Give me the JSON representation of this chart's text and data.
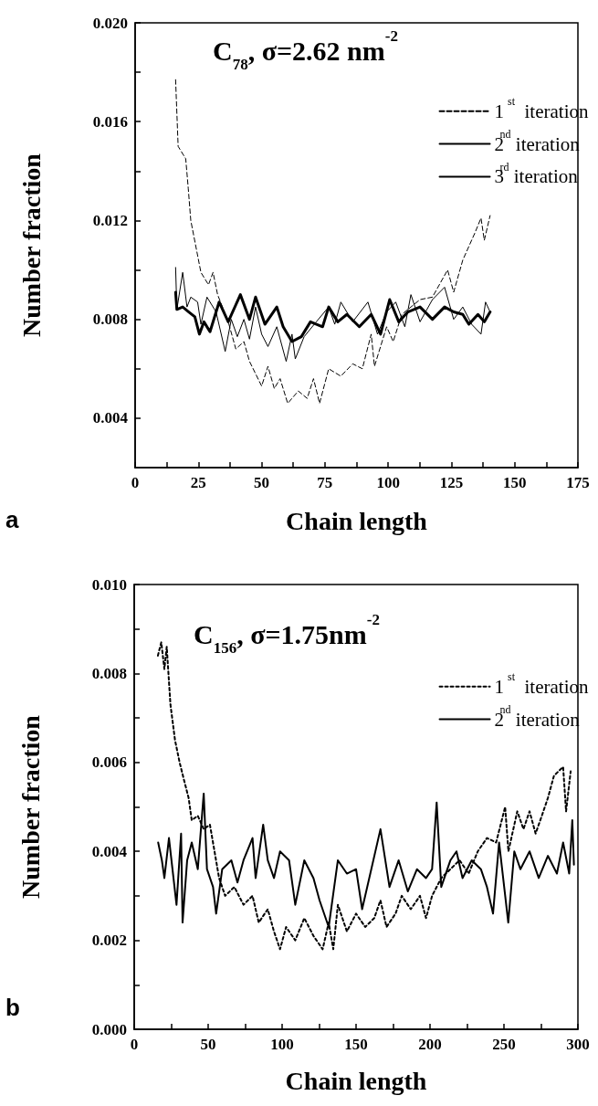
{
  "chart_data": [
    {
      "type": "line",
      "title": "C$_{78}$, σ=2.62 nm$^{-2}$",
      "xlabel": "Chain length",
      "ylabel": "Number fraction",
      "annotations": [
        "a"
      ],
      "legend": "top right",
      "marker": "none",
      "xlim": [
        0,
        175
      ],
      "xticks": [
        0,
        {
          "value": 12.5,
          "label": null
        },
        25,
        {
          "value": 37.5,
          "label": null
        },
        50,
        {
          "value": 62.5,
          "label": null
        },
        75,
        {
          "value": 87.5,
          "label": null
        },
        100,
        {
          "value": 112.5,
          "label": null
        },
        125,
        {
          "value": 137.5,
          "label": null
        },
        150,
        {
          "value": 162.5,
          "label": null
        },
        175
      ],
      "ylim": [
        0.002,
        0.02
      ],
      "yticks": [
        0.004,
        {
          "value": 0.006,
          "label": null
        },
        0.008,
        {
          "value": 0.01,
          "label": null
        },
        0.012,
        {
          "value": 0.014,
          "label": null
        },
        0.016,
        {
          "value": 0.018,
          "label": null
        },
        {
          "value": 0.02,
          "label": "0.020"
        }
      ],
      "series": [
        {
          "name": "1$^{st}$  iteration",
          "color": "#000000",
          "line_style": "dashed",
          "x": [
            16,
            17,
            20,
            21,
            22,
            26,
            29,
            30.8,
            32.6,
            36.8,
            39.8,
            43,
            45.2,
            50,
            52.5,
            55,
            57.3,
            60.3,
            64.5,
            68,
            70.5,
            72.9,
            76.5,
            81.3,
            86,
            89.8,
            93.3,
            94.6,
            99.4,
            102,
            105.4,
            112.6,
            117.5,
            123.5,
            125.9,
            129.5,
            134.3,
            136.7,
            138,
            140.3
          ],
          "values": [
            0.0177,
            0.015,
            0.0145,
            0.0133,
            0.012,
            0.0099,
            0.0094,
            0.0099,
            0.009,
            0.0079,
            0.0068,
            0.0071,
            0.0063,
            0.0053,
            0.0061,
            0.0052,
            0.0056,
            0.0046,
            0.0051,
            0.0048,
            0.0056,
            0.0046,
            0.006,
            0.0057,
            0.0062,
            0.006,
            0.0074,
            0.0061,
            0.0077,
            0.0071,
            0.0082,
            0.0088,
            0.0089,
            0.01,
            0.0091,
            0.0104,
            0.0115,
            0.0121,
            0.0112,
            0.0122
          ]
        },
        {
          "name": "2$^{nd}$ iteration",
          "color": "#000000",
          "line_style": "solid",
          "x": [
            16,
            16.5,
            18.8,
            20.5,
            22,
            24.7,
            26,
            28.4,
            32,
            35.6,
            38,
            40.4,
            43,
            45.2,
            47.6,
            50,
            52.5,
            56,
            59.7,
            62,
            63.3,
            66.8,
            71.6,
            76.5,
            78.9,
            81.3,
            86,
            92,
            95.8,
            99.4,
            103,
            106.6,
            109,
            112.6,
            117.5,
            122.3,
            125.9,
            129.5,
            133,
            136.7,
            138.5,
            140.3
          ],
          "values": [
            0.0101,
            0.0084,
            0.0099,
            0.0085,
            0.0089,
            0.0087,
            0.0078,
            0.0089,
            0.0083,
            0.0067,
            0.008,
            0.0073,
            0.008,
            0.0072,
            0.0085,
            0.0074,
            0.0069,
            0.0077,
            0.0063,
            0.0074,
            0.0064,
            0.0073,
            0.0079,
            0.0085,
            0.0078,
            0.0087,
            0.0079,
            0.0087,
            0.0074,
            0.0083,
            0.0087,
            0.0077,
            0.009,
            0.0079,
            0.0088,
            0.0093,
            0.008,
            0.0085,
            0.0078,
            0.0074,
            0.0087,
            0.0083
          ]
        },
        {
          "name": "3$^{rd}$ iteration",
          "color": "#000000",
          "line_style": "solid",
          "x": [
            16,
            16.5,
            18.8,
            21.2,
            23.6,
            25.4,
            27.2,
            29.6,
            33.2,
            36.8,
            41.6,
            45.2,
            47.6,
            51.3,
            56,
            58.5,
            62,
            65.7,
            69.3,
            74.1,
            76.5,
            80.1,
            83.7,
            88.6,
            93.3,
            97,
            100.6,
            104.2,
            107.8,
            112.6,
            117.5,
            122.3,
            125.9,
            129.5,
            131.9,
            135.5,
            138,
            140.3
          ],
          "values": [
            0.0091,
            0.0084,
            0.0085,
            0.0083,
            0.0081,
            0.0074,
            0.0079,
            0.0075,
            0.0087,
            0.0079,
            0.009,
            0.008,
            0.0089,
            0.0078,
            0.0085,
            0.0077,
            0.0071,
            0.0073,
            0.0079,
            0.0077,
            0.0085,
            0.0079,
            0.0082,
            0.0077,
            0.0082,
            0.0074,
            0.0088,
            0.0079,
            0.0083,
            0.0085,
            0.008,
            0.0085,
            0.0083,
            0.0082,
            0.0078,
            0.0082,
            0.0079,
            0.0083
          ]
        }
      ]
    },
    {
      "type": "line",
      "title": "C$_{156}$, σ=1.75nm$^{-2}$",
      "xlabel": "Chain length",
      "ylabel": "Number fraction",
      "annotations": [
        "b"
      ],
      "legend": "top right",
      "marker": "none",
      "xlim": [
        0,
        300
      ],
      "xticks": [
        0,
        {
          "value": 25,
          "label": null
        },
        50,
        {
          "value": 75,
          "label": null
        },
        100,
        {
          "value": 125,
          "label": null
        },
        150,
        {
          "value": 175,
          "label": null
        },
        200,
        {
          "value": 225,
          "label": null
        },
        250,
        {
          "value": 275,
          "label": null
        },
        300
      ],
      "ylim": [
        0,
        0.01
      ],
      "yticks": [
        {
          "value": 0,
          "label": "0.000"
        },
        {
          "value": 0.001,
          "label": null
        },
        0.002,
        {
          "value": 0.003,
          "label": null
        },
        0.004,
        {
          "value": 0.005,
          "label": null
        },
        0.006,
        {
          "value": 0.007,
          "label": null
        },
        0.008,
        {
          "value": 0.009,
          "label": null
        },
        {
          "value": 0.01,
          "label": "0.010"
        }
      ],
      "series": [
        {
          "name": "1$^{st}$  iteration",
          "color": "#000000",
          "line_style": "dotted",
          "x": [
            16,
            18.3,
            20.4,
            22,
            24.5,
            27.6,
            30.7,
            33.7,
            36.8,
            38.9,
            43,
            47,
            51.2,
            54.3,
            57.4,
            61.5,
            67.7,
            73.9,
            80,
            84.2,
            90.3,
            94.5,
            98.6,
            102.7,
            108.9,
            115,
            121.2,
            127.4,
            131.5,
            134.6,
            137.7,
            143.8,
            150,
            156.2,
            162.3,
            166.5,
            170.6,
            176.7,
            180.9,
            187,
            193.2,
            197.3,
            201.4,
            207.6,
            213.8,
            220,
            226.1,
            232.3,
            238.5,
            244.7,
            250.8,
            253,
            259,
            263.2,
            267.3,
            271.4,
            275.6,
            279.7,
            283.8,
            290,
            292,
            295.1
          ],
          "values": [
            0.0084,
            0.0087,
            0.0081,
            0.0086,
            0.0073,
            0.0065,
            0.006,
            0.0056,
            0.0052,
            0.0047,
            0.0048,
            0.0045,
            0.0046,
            0.004,
            0.0034,
            0.003,
            0.0032,
            0.0028,
            0.003,
            0.0024,
            0.0027,
            0.0022,
            0.0018,
            0.0023,
            0.002,
            0.0025,
            0.0021,
            0.0018,
            0.0024,
            0.0018,
            0.0028,
            0.0022,
            0.0026,
            0.0023,
            0.0025,
            0.0029,
            0.0023,
            0.0026,
            0.003,
            0.0027,
            0.003,
            0.0025,
            0.003,
            0.0034,
            0.0036,
            0.0038,
            0.0035,
            0.004,
            0.0043,
            0.0042,
            0.005,
            0.004,
            0.0049,
            0.0045,
            0.0049,
            0.0044,
            0.0048,
            0.0052,
            0.0057,
            0.0059,
            0.0049,
            0.0058
          ]
        },
        {
          "name": "2$^{nd}$ iteration",
          "color": "#000000",
          "line_style": "solid",
          "x": [
            16.2,
            18.7,
            20.4,
            23.5,
            28.6,
            31.7,
            32.7,
            35.8,
            38.9,
            43,
            47,
            49.2,
            53.3,
            55.4,
            59.5,
            65.7,
            69.8,
            73.9,
            80,
            82.1,
            87.2,
            90.3,
            94.5,
            98.6,
            104.7,
            108.9,
            115,
            121.2,
            125.3,
            131.5,
            137.7,
            143.8,
            150,
            154.1,
            160.3,
            166.5,
            172.6,
            178.8,
            185,
            191.2,
            197.3,
            201.4,
            204.5,
            207.6,
            213.8,
            217.9,
            222,
            228.2,
            234.4,
            238.5,
            242.6,
            246.7,
            252.9,
            257,
            261.1,
            267.3,
            273.5,
            279.7,
            285.8,
            290,
            294.1,
            296.2,
            297.3
          ],
          "values": [
            0.0042,
            0.0038,
            0.0034,
            0.0043,
            0.0028,
            0.0044,
            0.0024,
            0.0038,
            0.0042,
            0.0036,
            0.0053,
            0.0036,
            0.0032,
            0.0026,
            0.0036,
            0.0038,
            0.0033,
            0.0038,
            0.0043,
            0.0034,
            0.0046,
            0.0038,
            0.0034,
            0.004,
            0.0038,
            0.0028,
            0.0038,
            0.0034,
            0.0029,
            0.0023,
            0.0038,
            0.0035,
            0.0036,
            0.0027,
            0.0036,
            0.0045,
            0.0032,
            0.0038,
            0.0031,
            0.0036,
            0.0034,
            0.0036,
            0.0051,
            0.0032,
            0.0038,
            0.004,
            0.0034,
            0.0038,
            0.0036,
            0.0032,
            0.0026,
            0.0042,
            0.0024,
            0.004,
            0.0036,
            0.004,
            0.0034,
            0.0039,
            0.0035,
            0.0042,
            0.0035,
            0.0047,
            0.0037
          ]
        }
      ]
    }
  ]
}
